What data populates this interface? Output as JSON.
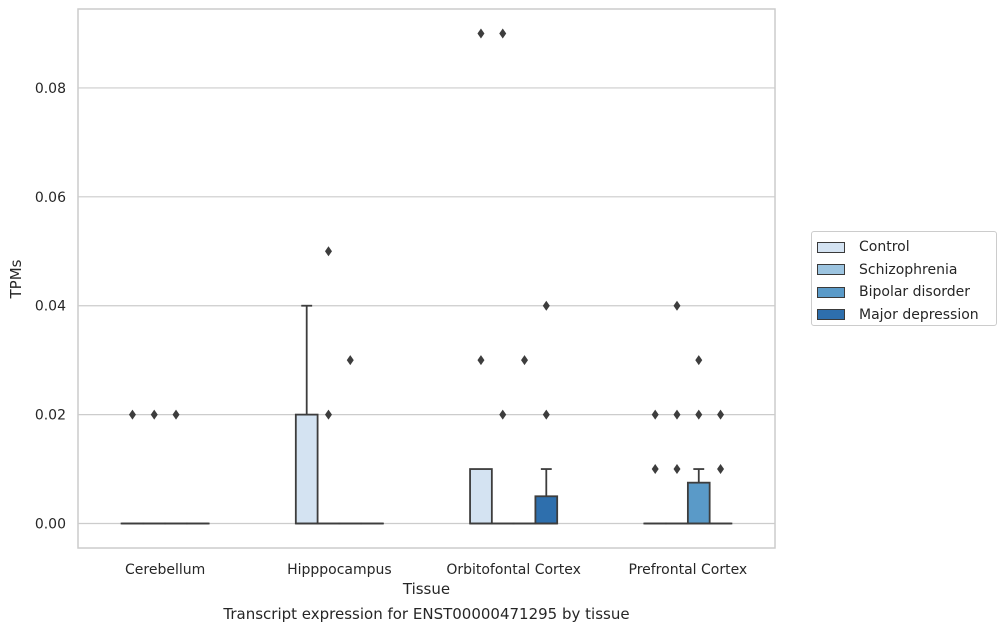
{
  "chart_data": {
    "type": "box",
    "caption": "Transcript expression for ENST00000471295 by tissue",
    "xlabel": "Tissue",
    "ylabel": "TPMs",
    "ylim": [
      -0.0045,
      0.0945
    ],
    "yticks": [
      0.0,
      0.02,
      0.04,
      0.06,
      0.08
    ],
    "ytick_labels": [
      "0.00",
      "0.02",
      "0.04",
      "0.06",
      "0.08"
    ],
    "grid": true,
    "legend_position": "right",
    "categories": [
      "Cerebellum",
      "Hipppocampus",
      "Orbitofontal Cortex",
      "Prefrontal Cortex"
    ],
    "series": [
      {
        "name": "Control",
        "color": "#d4e3f2",
        "boxes": [
          {
            "q1": 0,
            "median": 0,
            "q3": 0,
            "whislo": 0,
            "whishi": 0,
            "fliers": [
              0.02
            ]
          },
          {
            "q1": 0,
            "median": 0,
            "q3": 0.02,
            "whislo": 0,
            "whishi": 0.04,
            "fliers": []
          },
          {
            "q1": 0,
            "median": 0,
            "q3": 0.01,
            "whislo": 0,
            "whishi": 0.01,
            "fliers": [
              0.09,
              0.03
            ]
          },
          {
            "q1": 0,
            "median": 0,
            "q3": 0,
            "whislo": 0,
            "whishi": 0,
            "fliers": [
              0.01,
              0.02
            ]
          }
        ]
      },
      {
        "name": "Schizophrenia",
        "color": "#9cc4e0",
        "boxes": [
          {
            "q1": 0,
            "median": 0,
            "q3": 0,
            "whislo": 0,
            "whishi": 0,
            "fliers": [
              0.02
            ]
          },
          {
            "q1": 0,
            "median": 0,
            "q3": 0,
            "whislo": 0,
            "whishi": 0,
            "fliers": [
              0.05,
              0.02
            ]
          },
          {
            "q1": 0,
            "median": 0,
            "q3": 0,
            "whislo": 0,
            "whishi": 0,
            "fliers": [
              0.09,
              0.02
            ]
          },
          {
            "q1": 0,
            "median": 0,
            "q3": 0,
            "whislo": 0,
            "whishi": 0,
            "fliers": [
              0.01,
              0.04,
              0.02
            ]
          }
        ]
      },
      {
        "name": "Bipolar disorder",
        "color": "#5a9ac8",
        "boxes": [
          {
            "q1": 0,
            "median": 0,
            "q3": 0,
            "whislo": 0,
            "whishi": 0,
            "fliers": [
              0.02
            ]
          },
          {
            "q1": 0,
            "median": 0,
            "q3": 0,
            "whislo": 0,
            "whishi": 0,
            "fliers": [
              0.03
            ]
          },
          {
            "q1": 0,
            "median": 0,
            "q3": 0,
            "whislo": 0,
            "whishi": 0,
            "fliers": [
              0.03
            ]
          },
          {
            "q1": 0,
            "median": 0,
            "q3": 0.0075,
            "whislo": 0,
            "whishi": 0.01,
            "fliers": [
              0.03,
              0.02
            ]
          }
        ]
      },
      {
        "name": "Major depression",
        "color": "#2e6fad",
        "boxes": [
          {
            "q1": 0,
            "median": 0,
            "q3": 0,
            "whislo": 0,
            "whishi": 0,
            "fliers": []
          },
          {
            "q1": 0,
            "median": 0,
            "q3": 0,
            "whislo": 0,
            "whishi": 0,
            "fliers": []
          },
          {
            "q1": 0,
            "median": 0,
            "q3": 0.005,
            "whislo": 0,
            "whishi": 0.01,
            "fliers": [
              0.04,
              0.02
            ]
          },
          {
            "q1": 0,
            "median": 0,
            "q3": 0,
            "whislo": 0,
            "whishi": 0,
            "fliers": [
              0.02,
              0.01
            ]
          }
        ]
      }
    ]
  }
}
